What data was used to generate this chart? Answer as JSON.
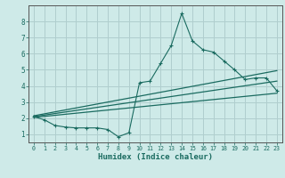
{
  "xlabel": "Humidex (Indice chaleur)",
  "xlim": [
    -0.5,
    23.5
  ],
  "ylim": [
    0.5,
    9.0
  ],
  "xticks": [
    0,
    1,
    2,
    3,
    4,
    5,
    6,
    7,
    8,
    9,
    10,
    11,
    12,
    13,
    14,
    15,
    16,
    17,
    18,
    19,
    20,
    21,
    22,
    23
  ],
  "yticks": [
    1,
    2,
    3,
    4,
    5,
    6,
    7,
    8
  ],
  "bg_color": "#ceeae8",
  "line_color": "#1a6b60",
  "grid_color": "#b0cece",
  "series1_x": [
    0,
    1,
    2,
    3,
    4,
    5,
    6,
    7,
    8,
    9,
    10,
    11,
    12,
    13,
    14,
    15,
    16,
    17,
    18,
    19,
    20,
    21,
    22,
    23
  ],
  "series1_y": [
    2.1,
    1.9,
    1.55,
    1.45,
    1.4,
    1.4,
    1.4,
    1.3,
    0.85,
    1.1,
    4.2,
    4.3,
    5.4,
    6.5,
    8.5,
    6.8,
    6.25,
    6.1,
    5.55,
    5.0,
    4.4,
    4.5,
    4.5,
    3.7
  ],
  "line1_x": [
    0,
    23
  ],
  "line1_y": [
    2.05,
    3.55
  ],
  "line2_x": [
    0,
    23
  ],
  "line2_y": [
    2.1,
    4.3
  ],
  "line3_x": [
    0,
    23
  ],
  "line3_y": [
    2.15,
    4.95
  ]
}
